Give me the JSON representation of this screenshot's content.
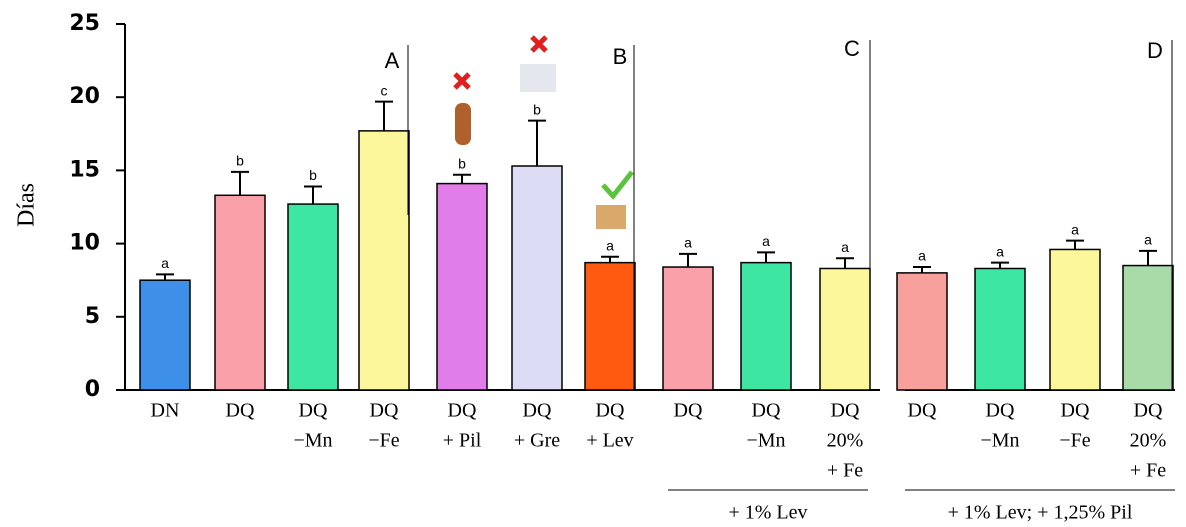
{
  "chart_data": {
    "type": "bar",
    "y_label": "Días",
    "categories": [
      [
        "DN"
      ],
      [
        "DQ"
      ],
      [
        "DQ",
        "−Mn"
      ],
      [
        "DQ",
        "−Fe"
      ],
      [
        "DQ",
        "+ Pil"
      ],
      [
        "DQ",
        "+ Gre"
      ],
      [
        "DQ",
        "+ Lev"
      ],
      [
        "DQ"
      ],
      [
        "DQ",
        "−Mn"
      ],
      [
        "DQ",
        "20%",
        "+ Fe"
      ],
      [
        "DQ"
      ],
      [
        "DQ",
        "−Mn"
      ],
      [
        "DQ",
        "−Fe"
      ],
      [
        "DQ",
        "20%",
        "+ Fe"
      ]
    ],
    "values": [
      7.5,
      13.3,
      12.7,
      17.7,
      14.1,
      15.3,
      8.7,
      8.4,
      8.7,
      8.3,
      8.0,
      8.3,
      9.6,
      8.5
    ],
    "errors": [
      0.4,
      1.6,
      1.2,
      2.0,
      0.6,
      3.1,
      0.4,
      0.9,
      0.7,
      0.7,
      0.4,
      0.4,
      0.6,
      1.0
    ],
    "letters": [
      "a",
      "b",
      "b",
      "c",
      "b",
      "b",
      "a",
      "a",
      "a",
      "a",
      "a",
      "a",
      "a",
      "a"
    ],
    "colors": [
      "#3d8fe8",
      "#f9a0a8",
      "#3ee6a3",
      "#fbf79a",
      "#e07de8",
      "#dcdcf5",
      "#ff5a10",
      "#f9a0a8",
      "#3ee6a3",
      "#fbf79a",
      "#f7a09c",
      "#3ee6a3",
      "#fbf79a",
      "#a8dba8"
    ],
    "ylim": [
      0,
      25
    ],
    "yticks": [
      0,
      5,
      10,
      15,
      20,
      25
    ],
    "panel_labels": [
      "A",
      "B",
      "C",
      "D"
    ],
    "group_labels": [
      "+ 1% Lev",
      "+ 1% Lev; + 1,25% Pil"
    ]
  }
}
